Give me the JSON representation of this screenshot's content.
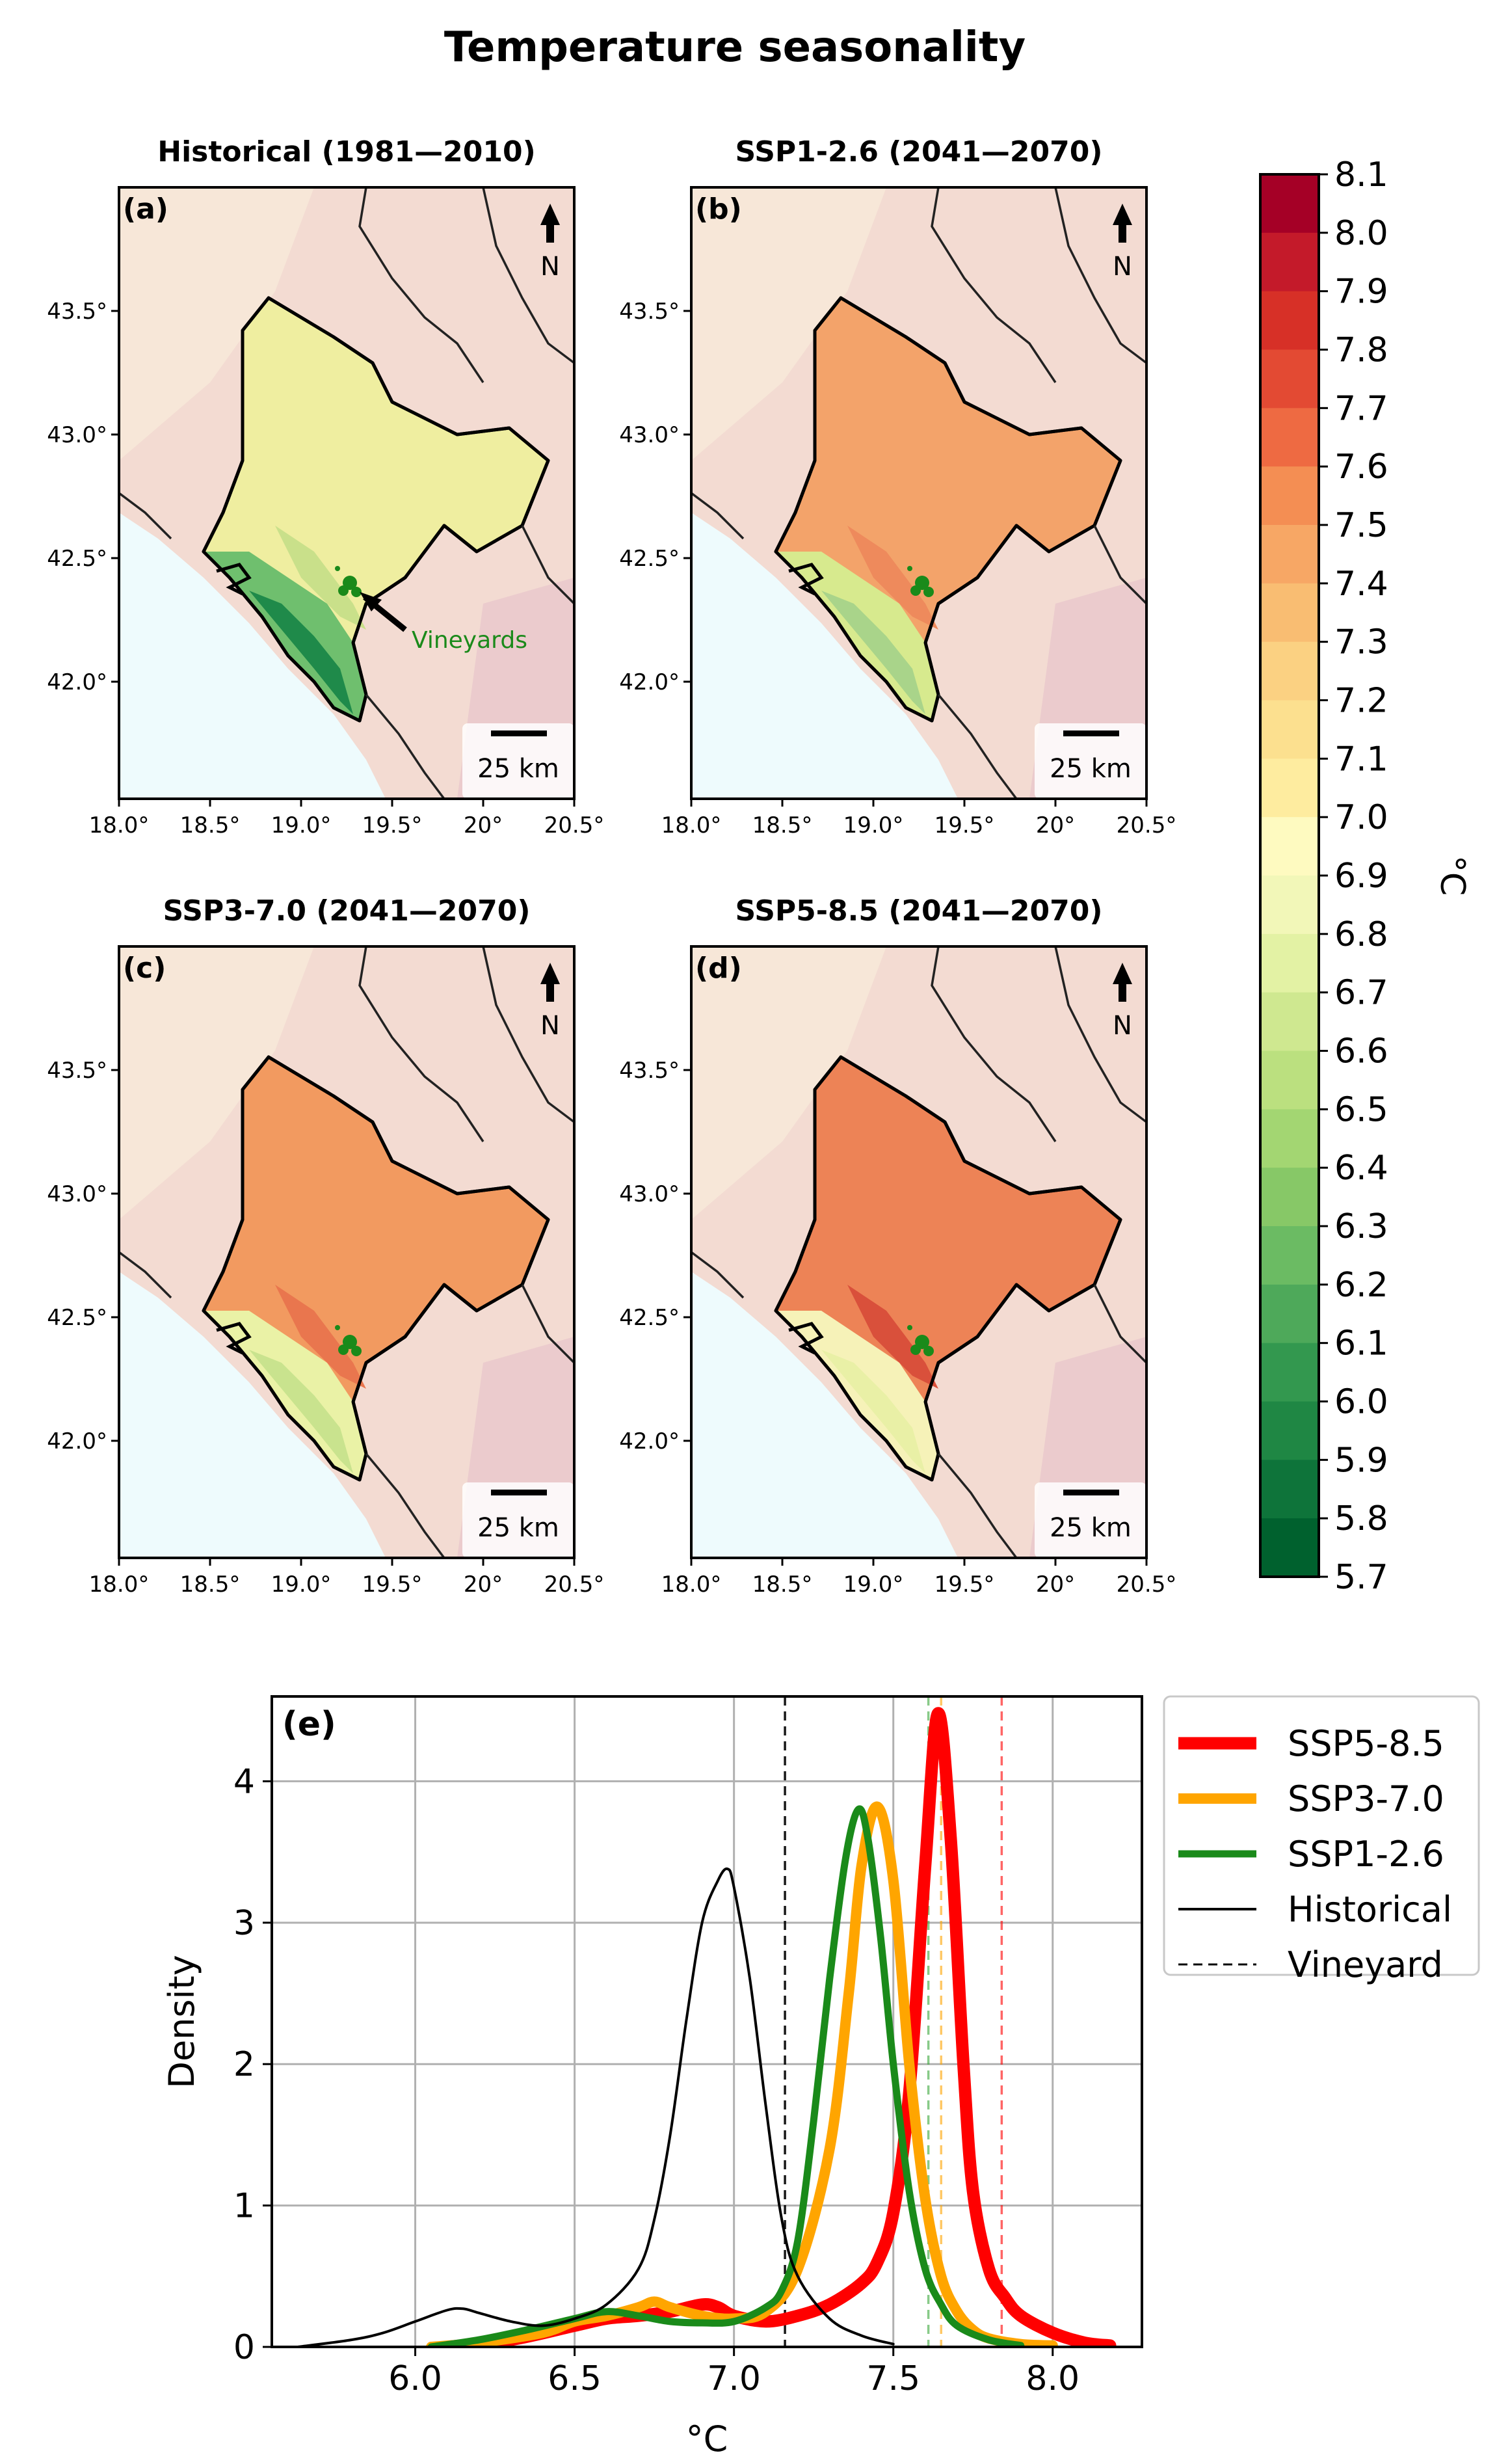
{
  "figure": {
    "title": "Temperature seasonality",
    "north_label": "N",
    "vineyards_label": "Vineyards",
    "scalebar_label": "25 km"
  },
  "maps": [
    {
      "label": "(a)",
      "title": "Historical (1981—2010)",
      "mainland": "#efeea0",
      "coast": "#6fbf6e",
      "south": "#1f8a4a",
      "ridge": "#c9e08a"
    },
    {
      "label": "(b)",
      "title": "SSP1-2.6 (2041—2070)",
      "mainland": "#f3a36a",
      "coast": "#d7ea8e",
      "south": "#a9d48a",
      "ridge": "#ee8a5c"
    },
    {
      "label": "(c)",
      "title": "SSP3-7.0  (2041—2070)",
      "mainland": "#f29a60",
      "coast": "#eaf2a6",
      "south": "#c9e38e",
      "ridge": "#e9764e"
    },
    {
      "label": "(d)",
      "title": "SSP5-8.5 (2041—2070)",
      "mainland": "#ed8356",
      "coast": "#f6f2b8",
      "south": "#e9f0a6",
      "ridge": "#d9503b"
    }
  ],
  "map_axes": {
    "xticks": [
      "18.0°",
      "18.5°",
      "19.0°",
      "19.5°",
      "20°",
      "20.5°"
    ],
    "yticks": [
      "43.5°",
      "43.0°",
      "42.5°",
      "42.0°"
    ]
  },
  "colorbar": {
    "unit": "°C",
    "min": 5.7,
    "max": 8.1,
    "ticks": [
      "8.1",
      "8.0",
      "7.9",
      "7.8",
      "7.7",
      "7.6",
      "7.5",
      "7.4",
      "7.3",
      "7.2",
      "7.1",
      "7.0",
      "6.9",
      "6.8",
      "6.7",
      "6.6",
      "6.5",
      "6.4",
      "6.3",
      "6.2",
      "6.1",
      "6.0",
      "5.9",
      "5.8",
      "5.7"
    ],
    "colors": [
      "#a50026",
      "#c41a2a",
      "#d73027",
      "#e34a33",
      "#ee6a42",
      "#f48e53",
      "#f7a765",
      "#f9bd72",
      "#fbd182",
      "#fce08f",
      "#feec9f",
      "#fefac0",
      "#f2f7b8",
      "#e3f2a4",
      "#cfe890",
      "#bbe07f",
      "#a3d672",
      "#87c867",
      "#6bbb63",
      "#4ea95a",
      "#33984f",
      "#1f8744",
      "#0e743a",
      "#00612e"
    ]
  },
  "chart_data": {
    "type": "line",
    "panel_label": "(e)",
    "xlabel": "°C",
    "ylabel": "Density",
    "xlim": [
      5.55,
      8.28
    ],
    "ylim": [
      0,
      4.6
    ],
    "xticks": [
      6.0,
      6.5,
      7.0,
      7.5,
      8.0
    ],
    "xtick_labels": [
      "6.0",
      "6.5",
      "7.0",
      "7.5",
      "8.0"
    ],
    "yticks": [
      0,
      1,
      2,
      3,
      4
    ],
    "ytick_labels": [
      "0",
      "1",
      "2",
      "3",
      "4"
    ],
    "grid": true,
    "legend_position": "outside-right",
    "series": [
      {
        "name": "SSP5-8.5",
        "color": "#ff0000",
        "width": 19,
        "x": [
          6.1,
          6.3,
          6.5,
          6.6,
          6.7,
          6.8,
          6.9,
          6.95,
          7.0,
          7.1,
          7.2,
          7.3,
          7.4,
          7.45,
          7.5,
          7.55,
          7.6,
          7.64,
          7.68,
          7.72,
          7.75,
          7.8,
          7.85,
          7.9,
          8.0,
          8.1,
          8.18
        ],
        "y": [
          0,
          0.05,
          0.15,
          0.2,
          0.22,
          0.25,
          0.3,
          0.28,
          0.22,
          0.18,
          0.22,
          0.3,
          0.45,
          0.6,
          0.95,
          1.8,
          3.4,
          4.48,
          3.6,
          2.0,
          1.1,
          0.55,
          0.35,
          0.22,
          0.1,
          0.03,
          0.01
        ]
      },
      {
        "name": "SSP3-7.0",
        "color": "#ffa500",
        "width": 16,
        "x": [
          6.05,
          6.2,
          6.4,
          6.5,
          6.6,
          6.7,
          6.75,
          6.8,
          6.9,
          7.0,
          7.1,
          7.2,
          7.3,
          7.36,
          7.4,
          7.45,
          7.5,
          7.55,
          7.6,
          7.65,
          7.7,
          7.75,
          7.8,
          7.9,
          8.0
        ],
        "y": [
          0,
          0.03,
          0.1,
          0.18,
          0.22,
          0.28,
          0.32,
          0.28,
          0.22,
          0.2,
          0.25,
          0.55,
          1.4,
          2.5,
          3.4,
          3.82,
          3.3,
          2.0,
          1.05,
          0.5,
          0.25,
          0.12,
          0.06,
          0.02,
          0.01
        ]
      },
      {
        "name": "SSP1-2.6",
        "color": "#1a8a1a",
        "width": 11,
        "x": [
          6.05,
          6.2,
          6.35,
          6.5,
          6.6,
          6.7,
          6.8,
          6.9,
          7.0,
          7.1,
          7.15,
          7.2,
          7.25,
          7.3,
          7.35,
          7.39,
          7.42,
          7.46,
          7.5,
          7.55,
          7.6,
          7.65,
          7.7,
          7.8,
          7.9
        ],
        "y": [
          0,
          0.05,
          0.12,
          0.2,
          0.25,
          0.22,
          0.18,
          0.17,
          0.18,
          0.28,
          0.4,
          0.75,
          1.6,
          2.6,
          3.45,
          3.8,
          3.6,
          2.9,
          2.0,
          1.1,
          0.55,
          0.3,
          0.15,
          0.05,
          0.01
        ]
      },
      {
        "name": "Historical",
        "color": "#000000",
        "width": 4,
        "x": [
          5.63,
          5.8,
          5.9,
          6.0,
          6.1,
          6.15,
          6.2,
          6.3,
          6.4,
          6.5,
          6.6,
          6.7,
          6.75,
          6.8,
          6.85,
          6.9,
          6.95,
          6.98,
          7.0,
          7.05,
          7.1,
          7.15,
          7.2,
          7.3,
          7.4,
          7.5
        ],
        "y": [
          0,
          0.05,
          0.1,
          0.18,
          0.26,
          0.27,
          0.24,
          0.18,
          0.15,
          0.2,
          0.3,
          0.55,
          0.9,
          1.5,
          2.3,
          3.0,
          3.3,
          3.38,
          3.25,
          2.6,
          1.7,
          0.9,
          0.5,
          0.2,
          0.08,
          0.02
        ]
      }
    ],
    "vineyard_lines": [
      {
        "x": 7.16,
        "color": "#000000",
        "alpha": 0.9
      },
      {
        "x": 7.61,
        "color": "#3aa83a",
        "alpha": 0.6
      },
      {
        "x": 7.65,
        "color": "#ffa500",
        "alpha": 0.6
      },
      {
        "x": 7.84,
        "color": "#ff0000",
        "alpha": 0.6
      }
    ],
    "legend": [
      {
        "name": "SSP5-8.5",
        "color": "#ff0000",
        "width": 19,
        "style": "solid"
      },
      {
        "name": "SSP3-7.0",
        "color": "#ffa500",
        "width": 16,
        "style": "solid"
      },
      {
        "name": "SSP1-2.6",
        "color": "#1a8a1a",
        "width": 11,
        "style": "solid"
      },
      {
        "name": "Historical",
        "color": "#000000",
        "width": 4,
        "style": "solid"
      },
      {
        "name": "Vineyard",
        "color": "#000000",
        "width": 3,
        "style": "dashed"
      }
    ]
  }
}
